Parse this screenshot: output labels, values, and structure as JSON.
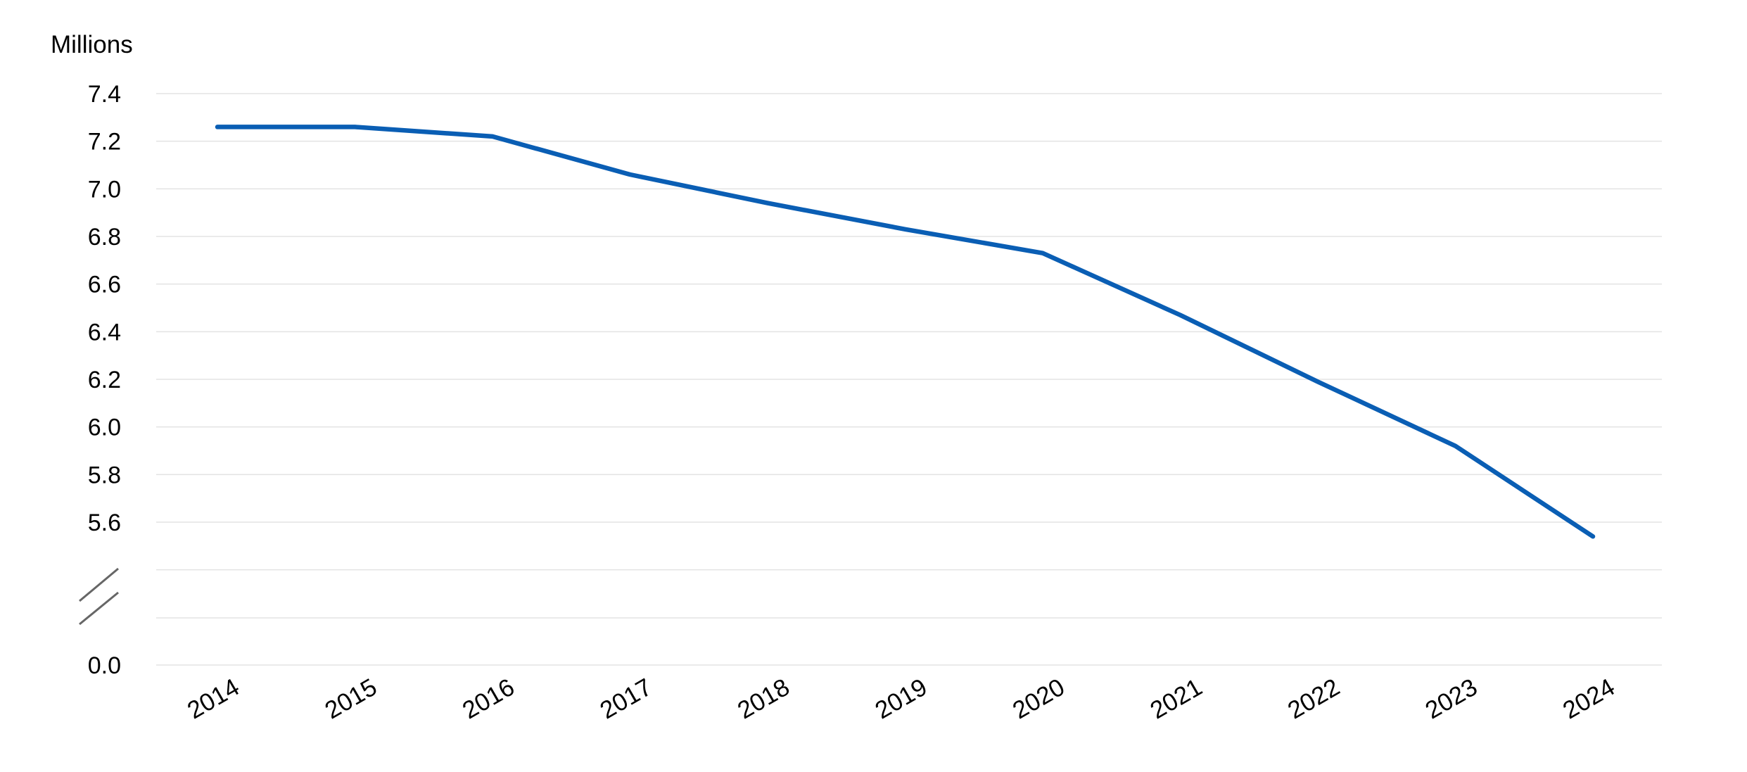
{
  "chart_data": {
    "type": "line",
    "title": "",
    "xlabel": "",
    "ylabel": "Millions",
    "x": [
      "2014",
      "2015",
      "2016",
      "2017",
      "2018",
      "2019",
      "2020",
      "2021",
      "2022",
      "2023",
      "2024"
    ],
    "series": [
      {
        "values": [
          7.26,
          7.26,
          7.22,
          7.06,
          6.94,
          6.83,
          6.73,
          6.47,
          6.19,
          5.92,
          5.54
        ]
      }
    ],
    "y_ticks": [
      "7.4",
      "7.2",
      "7.0",
      "6.8",
      "6.6",
      "6.4",
      "6.2",
      "6.0",
      "5.8",
      "5.6",
      "0.0"
    ],
    "ylim": [
      5.6,
      7.4
    ],
    "y_axis_break": true,
    "y_axis_baseline": "0.0",
    "grid": true,
    "legend": "none",
    "colors": {
      "series": "#0a5eb4",
      "grid": "#e3e3e3",
      "axis_break": "#666666"
    }
  }
}
